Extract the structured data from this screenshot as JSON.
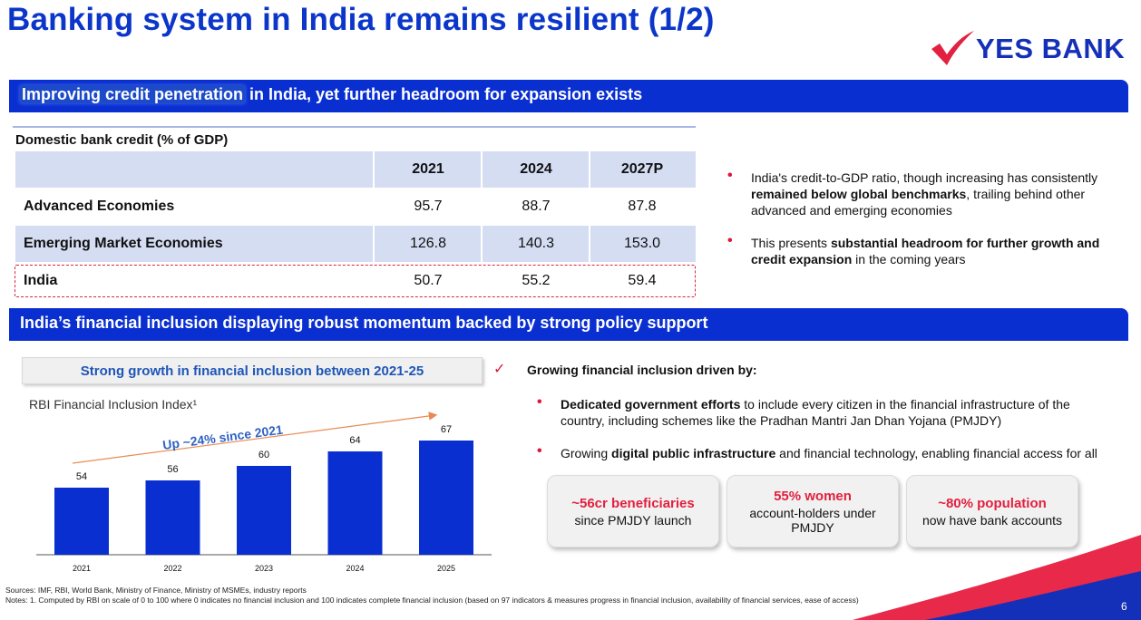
{
  "title": "Banking system in India remains resilient (1/2)",
  "logo": {
    "text": "YES BANK",
    "icon": "check-swoosh-icon",
    "brand_color": "#1530b8",
    "accent_color": "#e3203f"
  },
  "section1": {
    "highlight": "Improving credit penetration",
    "rest": " in India, yet further headroom for expansion exists"
  },
  "credit_table": {
    "caption": "Domestic bank credit (% of GDP)",
    "headers": [
      "2021",
      "2024",
      "2027P"
    ],
    "rows": [
      {
        "label": "Advanced Economies",
        "values": [
          "95.7",
          "88.7",
          "87.8"
        ]
      },
      {
        "label": "Emerging Market Economies",
        "values": [
          "126.8",
          "140.3",
          "153.0"
        ]
      },
      {
        "label": "India",
        "values": [
          "50.7",
          "55.2",
          "59.4"
        ]
      }
    ]
  },
  "credit_bullets": [
    {
      "pre": "India's credit-to-GDP ratio, though increasing has consistently ",
      "bold": "remained below global benchmarks",
      "post": ", trailing behind other advanced and emerging economies"
    },
    {
      "pre": "This presents ",
      "bold": "substantial headroom for further growth and credit expansion",
      "post": " in the coming years"
    }
  ],
  "section2": {
    "title": "India’s financial inclusion displaying robust momentum backed by strong policy support"
  },
  "growth_box": "Strong growth in financial inclusion between 2021-25",
  "chart_data": {
    "type": "bar",
    "title": "RBI Financial Inclusion Index¹",
    "categories": [
      "2021",
      "2022",
      "2023",
      "2024",
      "2025"
    ],
    "values": [
      54,
      56,
      60,
      64,
      67
    ],
    "annotation": "Up ~24% since 2021",
    "bar_color": "#0a2fd1",
    "ylim": [
      40,
      70
    ]
  },
  "gfi": {
    "title": "Growing financial inclusion driven by:",
    "bullets": [
      {
        "pre": "",
        "bold": "Dedicated government efforts",
        "post": " to include every citizen in the financial infrastructure of the country, including schemes like the Pradhan Mantri Jan Dhan Yojana (PMJDY)"
      },
      {
        "pre": "Growing ",
        "bold": "digital public infrastructure",
        "post": " and financial technology, enabling financial access for all"
      }
    ]
  },
  "stats": [
    {
      "main": "~56cr beneficiaries",
      "sub": "since PMJDY launch"
    },
    {
      "main": "55% women",
      "sub": "account-holders under PMJDY"
    },
    {
      "main": "~80% population",
      "sub": "now have bank accounts"
    }
  ],
  "footnotes": {
    "sources": "Sources: IMF, RBI, World Bank, Ministry of Finance, Ministry of MSMEs, industry reports",
    "notes": "Notes: 1. Computed by RBI on scale of  0 to 100 where 0 indicates no financial inclusion and 100 indicates complete financial inclusion (based on 97 indicators & measures progress in financial inclusion, availability of financial services, ease of access)"
  },
  "page_number": "6"
}
